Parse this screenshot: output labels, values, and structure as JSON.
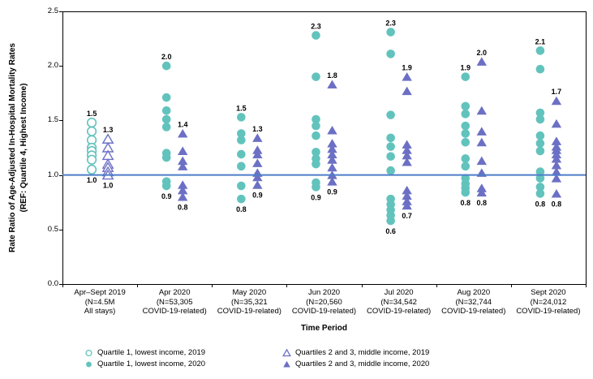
{
  "chart_data": {
    "type": "scatter",
    "title": "",
    "ylabel_line1": "Rate Ratio of Age-Adjusted In-Hospital Mortality Rates",
    "ylabel_line2": "(REF: Quartile 4, Highest Income)",
    "xlabel": "Time Period",
    "ylim": [
      0.0,
      2.5
    ],
    "ytick_labels": [
      "0.0",
      "0.5",
      "1.0",
      "1.5",
      "2.0",
      "2.5"
    ],
    "grid": false,
    "legend_position": "bottom",
    "reference_line_value": 1.0,
    "colors": {
      "quartile1_teal": "#62C3BD",
      "quartiles23_purple": "#6C70C4",
      "reference_line_blue": "#4E7EC8",
      "axis_black": "#000000"
    },
    "categories": [
      {
        "lines": [
          "Apr–Sept 2019",
          "(N=4.5M",
          "All stays)"
        ]
      },
      {
        "lines": [
          "Apr 2020",
          "(N=53,305",
          "COVID-19-related)"
        ]
      },
      {
        "lines": [
          "May 2020",
          "(N=35,321",
          "COVID-19-related)"
        ]
      },
      {
        "lines": [
          "Jun 2020",
          "(N=20,560",
          "COVID-19-related)"
        ]
      },
      {
        "lines": [
          "Jul 2020",
          "(N=34,542",
          "COVID-19-related)"
        ]
      },
      {
        "lines": [
          "Aug 2020",
          "(N=32,744",
          "COVID-19-related)"
        ]
      },
      {
        "lines": [
          "Sept 2020",
          "(N=24,012",
          "COVID-19-related)"
        ]
      }
    ],
    "series": [
      {
        "name": "Quartile 1, lowest income, 2019",
        "marker": "open-circle",
        "color": "#62C3BD",
        "groups": [
          {
            "category": 0,
            "values": [
              1.48,
              1.4,
              1.32,
              1.25,
              1.22,
              1.18,
              1.14,
              1.05
            ],
            "max_label": "1.5",
            "min_label": "1.0"
          }
        ]
      },
      {
        "name": "Quartile 1, lowest income, 2020",
        "marker": "filled-circle",
        "color": "#62C3BD",
        "groups": [
          {
            "category": 1,
            "values": [
              2.0,
              1.71,
              1.59,
              1.51,
              1.44,
              1.2,
              1.16,
              0.94,
              0.9
            ],
            "max_label": "2.0",
            "min_label": "0.9"
          },
          {
            "category": 2,
            "values": [
              1.53,
              1.38,
              1.32,
              1.19,
              1.08,
              0.9,
              0.78
            ],
            "max_label": "1.5",
            "min_label": "0.8"
          },
          {
            "category": 3,
            "values": [
              2.28,
              1.9,
              1.51,
              1.45,
              1.36,
              1.21,
              1.15,
              1.1,
              0.93,
              0.89
            ],
            "max_label": "2.3",
            "min_label": "0.9"
          },
          {
            "category": 4,
            "values": [
              2.31,
              2.11,
              1.55,
              1.34,
              1.26,
              1.17,
              1.04,
              0.78,
              0.73,
              0.68,
              0.63,
              0.58
            ],
            "max_label": "2.3",
            "min_label": "0.6"
          },
          {
            "category": 5,
            "values": [
              1.9,
              1.63,
              1.56,
              1.45,
              1.38,
              1.3,
              1.15,
              1.08,
              0.97,
              0.92,
              0.88,
              0.84
            ],
            "max_label": "1.9",
            "min_label": "0.8"
          },
          {
            "category": 6,
            "values": [
              2.14,
              1.97,
              1.57,
              1.51,
              1.36,
              1.29,
              1.22,
              1.03,
              0.97,
              0.89,
              0.83
            ],
            "max_label": "2.1",
            "min_label": "0.8"
          }
        ]
      },
      {
        "name": "Quartiles 2 and 3, middle income, 2019",
        "marker": "open-triangle",
        "color": "#6C70C4",
        "groups": [
          {
            "category": 0,
            "values": [
              1.33,
              1.25,
              1.18,
              1.1,
              1.07,
              1.03,
              1.0
            ],
            "max_label": "1.3",
            "min_label": "1.0"
          }
        ]
      },
      {
        "name": "Quartiles 2 and 3, middle income, 2020",
        "marker": "filled-triangle",
        "color": "#6C70C4",
        "groups": [
          {
            "category": 1,
            "values": [
              1.38,
              1.22,
              1.13,
              1.08,
              0.91,
              0.86,
              0.8
            ],
            "max_label": "1.4",
            "min_label": "0.8"
          },
          {
            "category": 2,
            "values": [
              1.34,
              1.23,
              1.19,
              1.11,
              1.02,
              0.98,
              0.91
            ],
            "max_label": "1.3",
            "min_label": "0.9"
          },
          {
            "category": 3,
            "values": [
              1.83,
              1.41,
              1.29,
              1.24,
              1.19,
              1.14,
              1.07,
              1.0,
              0.94
            ],
            "max_label": "1.8",
            "min_label": "0.9"
          },
          {
            "category": 4,
            "values": [
              1.9,
              1.77,
              1.28,
              1.23,
              1.18,
              1.12,
              0.86,
              0.81,
              0.76,
              0.72
            ],
            "max_label": "1.9",
            "min_label": "0.7"
          },
          {
            "category": 5,
            "values": [
              2.04,
              1.59,
              1.4,
              1.3,
              1.13,
              1.02,
              0.88,
              0.84
            ],
            "max_label": "2.0",
            "min_label": "0.8"
          },
          {
            "category": 6,
            "values": [
              1.68,
              1.47,
              1.31,
              1.26,
              1.23,
              1.19,
              1.15,
              1.09,
              1.03,
              0.97,
              0.83
            ],
            "max_label": "1.7",
            "min_label": "0.8"
          }
        ]
      }
    ],
    "legend_columns": [
      [
        0,
        1
      ],
      [
        2,
        3
      ]
    ]
  }
}
